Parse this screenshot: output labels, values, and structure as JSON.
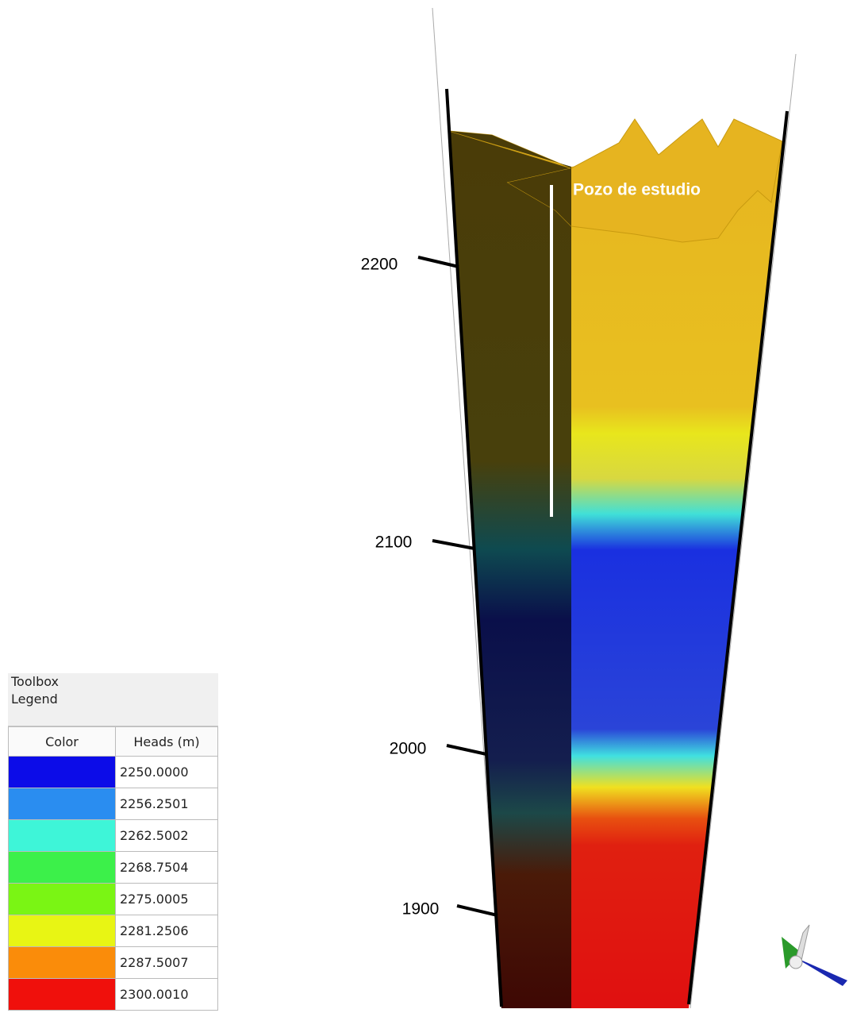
{
  "toolbox_label": "Toolbox",
  "legend_title": "Legend",
  "table": {
    "headers": [
      "Color",
      "Heads (m)"
    ],
    "rows": [
      {
        "color": "#0c0ce8",
        "value": "2250.0000"
      },
      {
        "color": "#2a8df0",
        "value": "2256.2501"
      },
      {
        "color": "#3ef5d8",
        "value": "2262.5002"
      },
      {
        "color": "#3cf04a",
        "value": "2268.7504"
      },
      {
        "color": "#7af514",
        "value": "2275.0005"
      },
      {
        "color": "#e8f514",
        "value": "2281.2506"
      },
      {
        "color": "#fa8c0a",
        "value": "2287.5007"
      },
      {
        "color": "#f0100c",
        "value": "2300.0010"
      }
    ]
  },
  "depth_labels": [
    "2200",
    "2100",
    "2000",
    "1900"
  ],
  "well_label": "Pozo de estudio"
}
